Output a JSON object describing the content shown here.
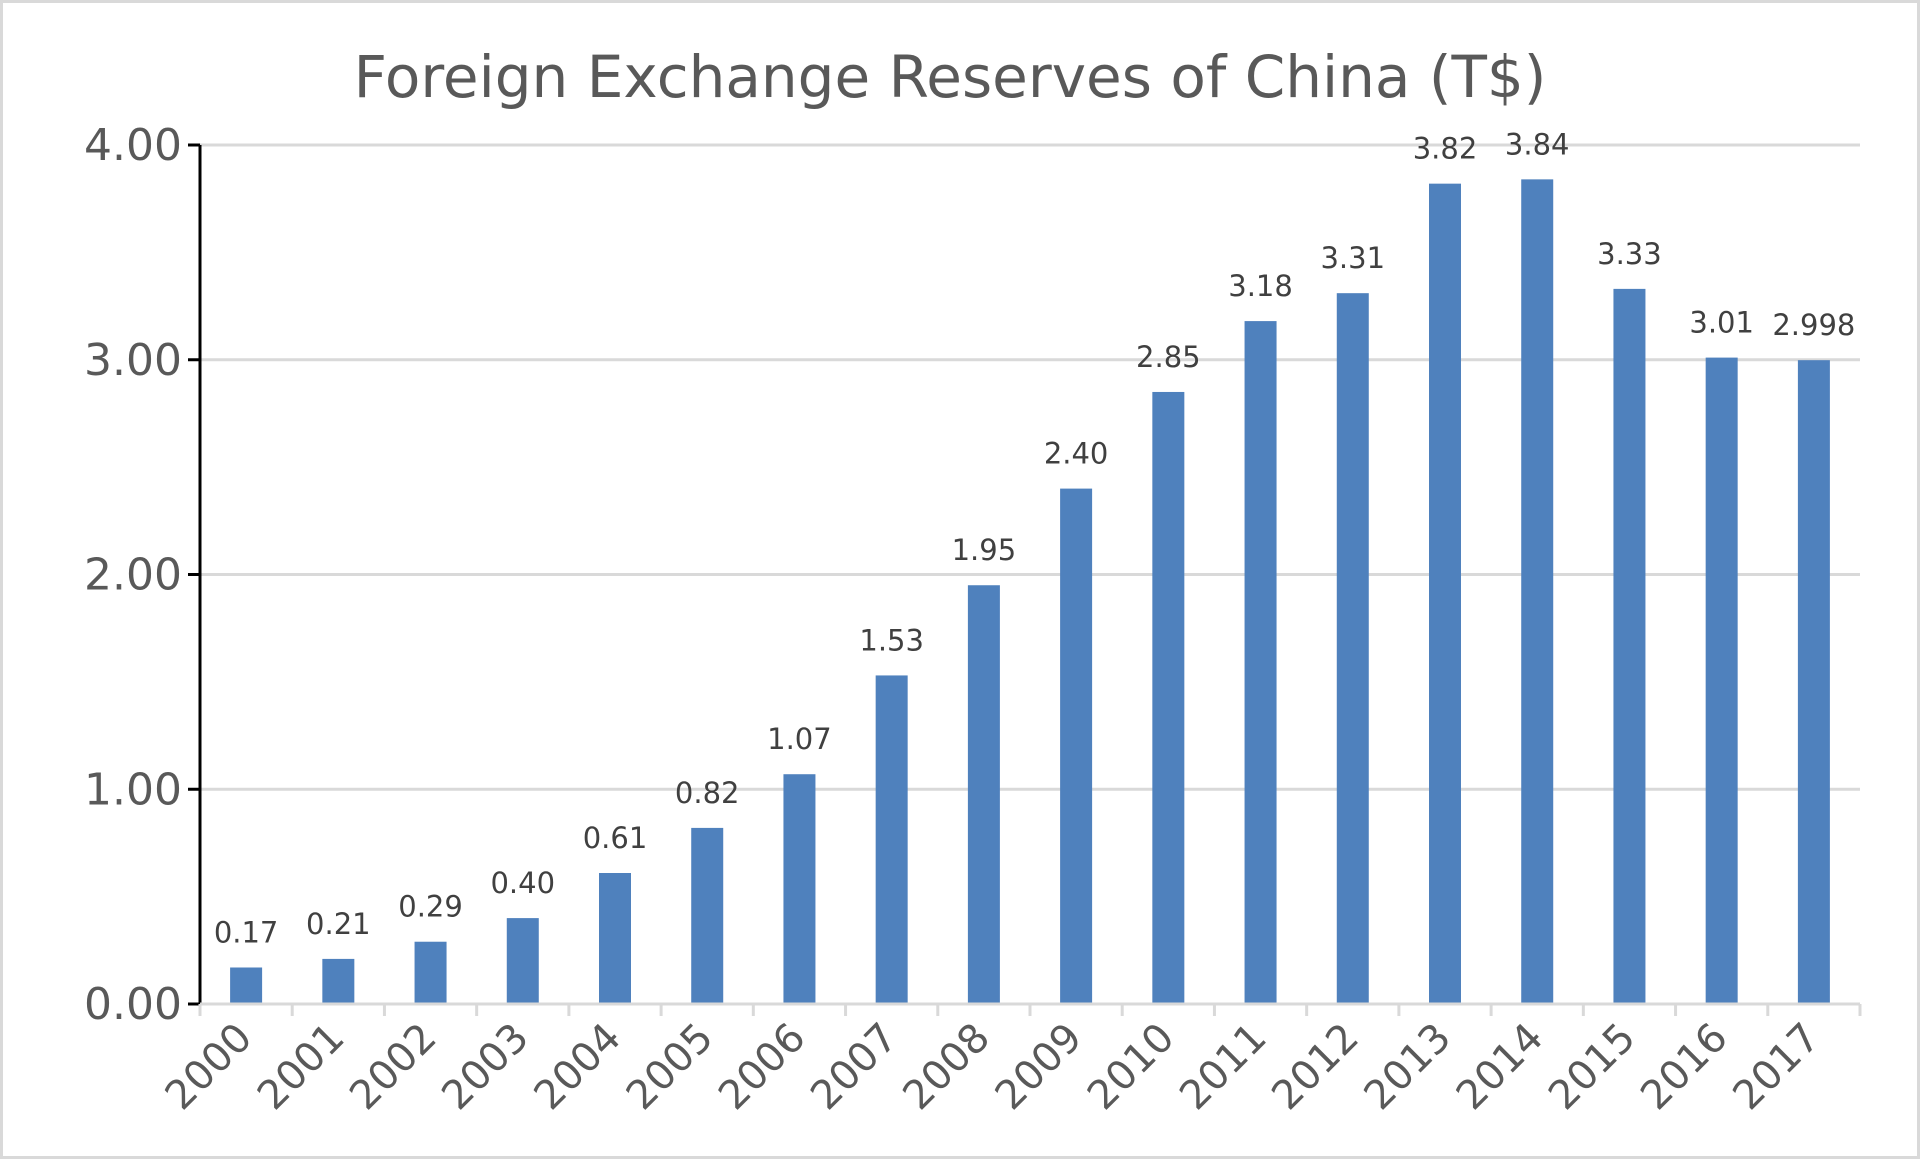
{
  "chart_data": {
    "type": "bar",
    "title": "Foreign Exchange Reserves of China (T$)",
    "xlabel": "",
    "ylabel": "",
    "categories": [
      "2000",
      "2001",
      "2002",
      "2003",
      "2004",
      "2005",
      "2006",
      "2007",
      "2008",
      "2009",
      "2010",
      "2011",
      "2012",
      "2013",
      "2014",
      "2015",
      "2016",
      "2017"
    ],
    "values": [
      0.17,
      0.21,
      0.29,
      0.4,
      0.61,
      0.82,
      1.07,
      1.53,
      1.95,
      2.4,
      2.85,
      3.18,
      3.31,
      3.82,
      3.84,
      3.33,
      3.01,
      2.998
    ],
    "data_labels": [
      "0.17",
      "0.21",
      "0.29",
      "0.40",
      "0.61",
      "0.82",
      "1.07",
      "1.53",
      "1.95",
      "2.40",
      "2.85",
      "3.18",
      "3.31",
      "3.82",
      "3.84",
      "3.33",
      "3.01",
      "2.998"
    ],
    "ylim": [
      0,
      4
    ],
    "y_ticks": [
      0,
      1,
      2,
      3,
      4
    ],
    "y_tick_labels": [
      "0.00",
      "1.00",
      "2.00",
      "3.00",
      "4.00"
    ],
    "grid": true,
    "legend": "none",
    "colors": {
      "bar": "#4f81bd",
      "grid": "#d9d9d9",
      "axis": "#000000",
      "text": "#595959",
      "data_label": "#404040",
      "frame": "#d9d9d9"
    }
  }
}
